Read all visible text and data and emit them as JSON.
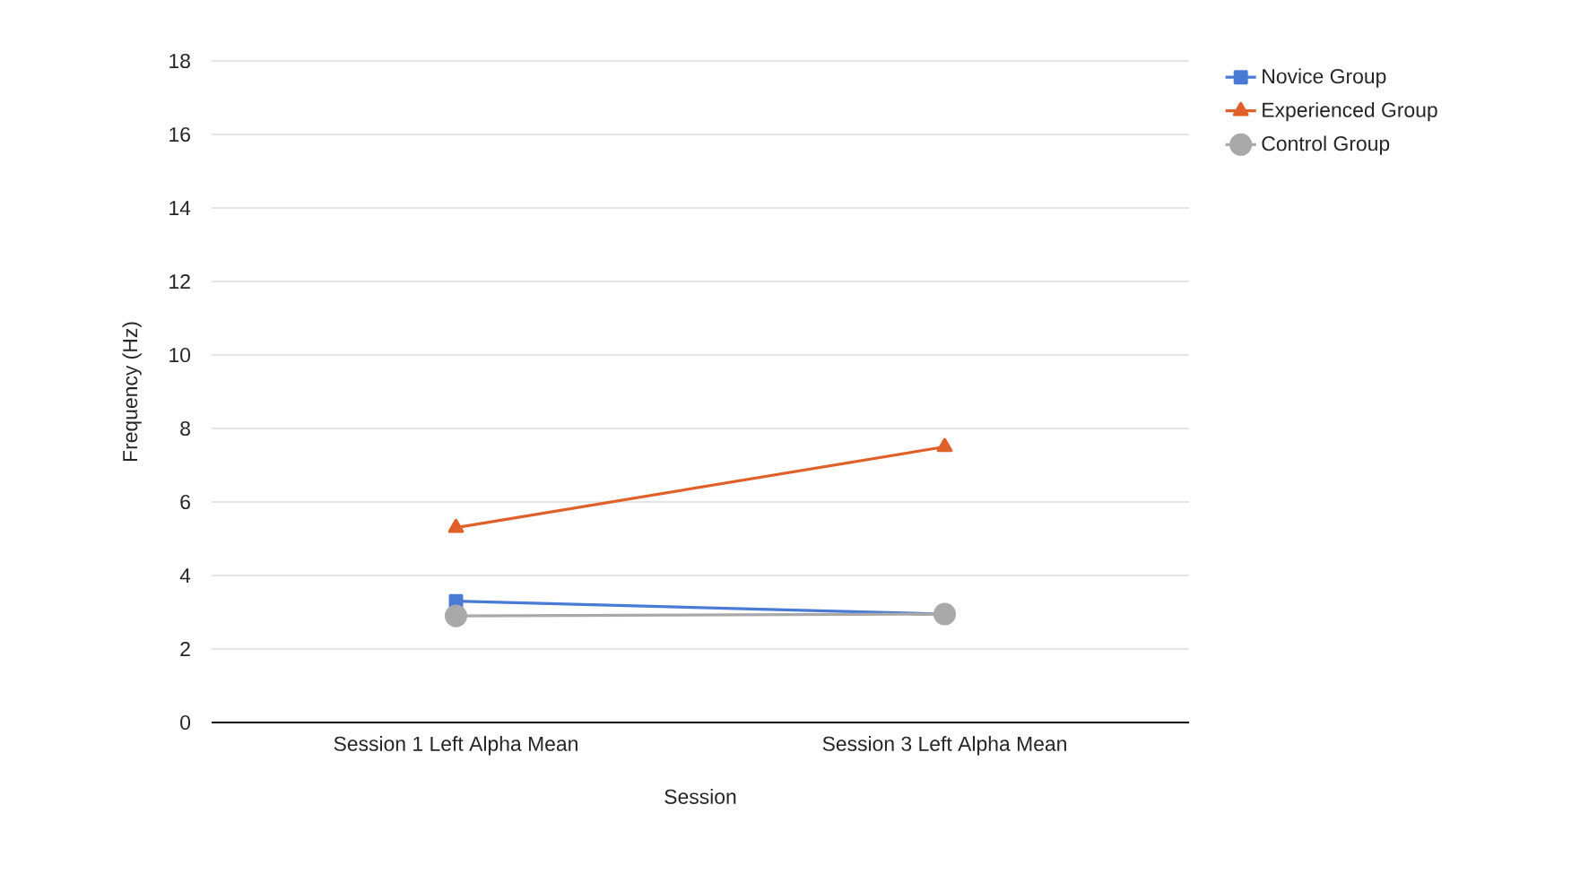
{
  "chart_data": {
    "type": "line",
    "xlabel": "Session",
    "ylabel": "Frequency (Hz)",
    "categories": [
      "Session 1 Left Alpha Mean",
      "Session 3 Left Alpha Mean"
    ],
    "series": [
      {
        "name": "Novice Group",
        "color": "#4a7bd4",
        "marker": "square",
        "values": [
          3.3,
          2.95
        ]
      },
      {
        "name": "Experienced Group",
        "color": "#e0602a",
        "marker": "triangle",
        "values": [
          5.3,
          7.5
        ]
      },
      {
        "name": "Control Group",
        "color": "#a9a9a9",
        "marker": "circle",
        "values": [
          2.9,
          2.95
        ]
      }
    ],
    "ylim": [
      0,
      18
    ],
    "yticks": [
      0,
      2,
      4,
      6,
      8,
      10,
      12,
      14,
      16,
      18
    ],
    "grid": "y",
    "legend": "top right"
  }
}
